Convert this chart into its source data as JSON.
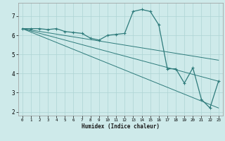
{
  "xlabel": "Humidex (Indice chaleur)",
  "background_color": "#ceeaea",
  "grid_color": "#add4d4",
  "line_color": "#2e7b7b",
  "xlim": [
    -0.5,
    23.5
  ],
  "ylim": [
    1.8,
    7.7
  ],
  "yticks": [
    2,
    3,
    4,
    5,
    6,
    7
  ],
  "xticks": [
    0,
    1,
    2,
    3,
    4,
    5,
    6,
    7,
    8,
    9,
    10,
    11,
    12,
    13,
    14,
    15,
    16,
    17,
    18,
    19,
    20,
    21,
    22,
    23
  ],
  "series": [
    [
      0,
      6.35
    ],
    [
      1,
      6.35
    ],
    [
      2,
      6.35
    ],
    [
      3,
      6.3
    ],
    [
      4,
      6.35
    ],
    [
      5,
      6.2
    ],
    [
      6,
      6.15
    ],
    [
      7,
      6.1
    ],
    [
      8,
      5.85
    ],
    [
      9,
      5.75
    ],
    [
      10,
      6.0
    ],
    [
      11,
      6.05
    ],
    [
      12,
      6.1
    ],
    [
      13,
      7.25
    ],
    [
      14,
      7.35
    ],
    [
      15,
      7.25
    ],
    [
      16,
      6.55
    ],
    [
      17,
      4.25
    ],
    [
      18,
      4.25
    ],
    [
      19,
      3.5
    ],
    [
      20,
      4.3
    ],
    [
      21,
      2.65
    ],
    [
      22,
      2.2
    ],
    [
      23,
      3.6
    ]
  ],
  "line2": [
    [
      0,
      6.35
    ],
    [
      23,
      2.2
    ]
  ],
  "line3": [
    [
      0,
      6.35
    ],
    [
      23,
      3.6
    ]
  ],
  "line4": [
    [
      0,
      6.35
    ],
    [
      23,
      4.7
    ]
  ]
}
